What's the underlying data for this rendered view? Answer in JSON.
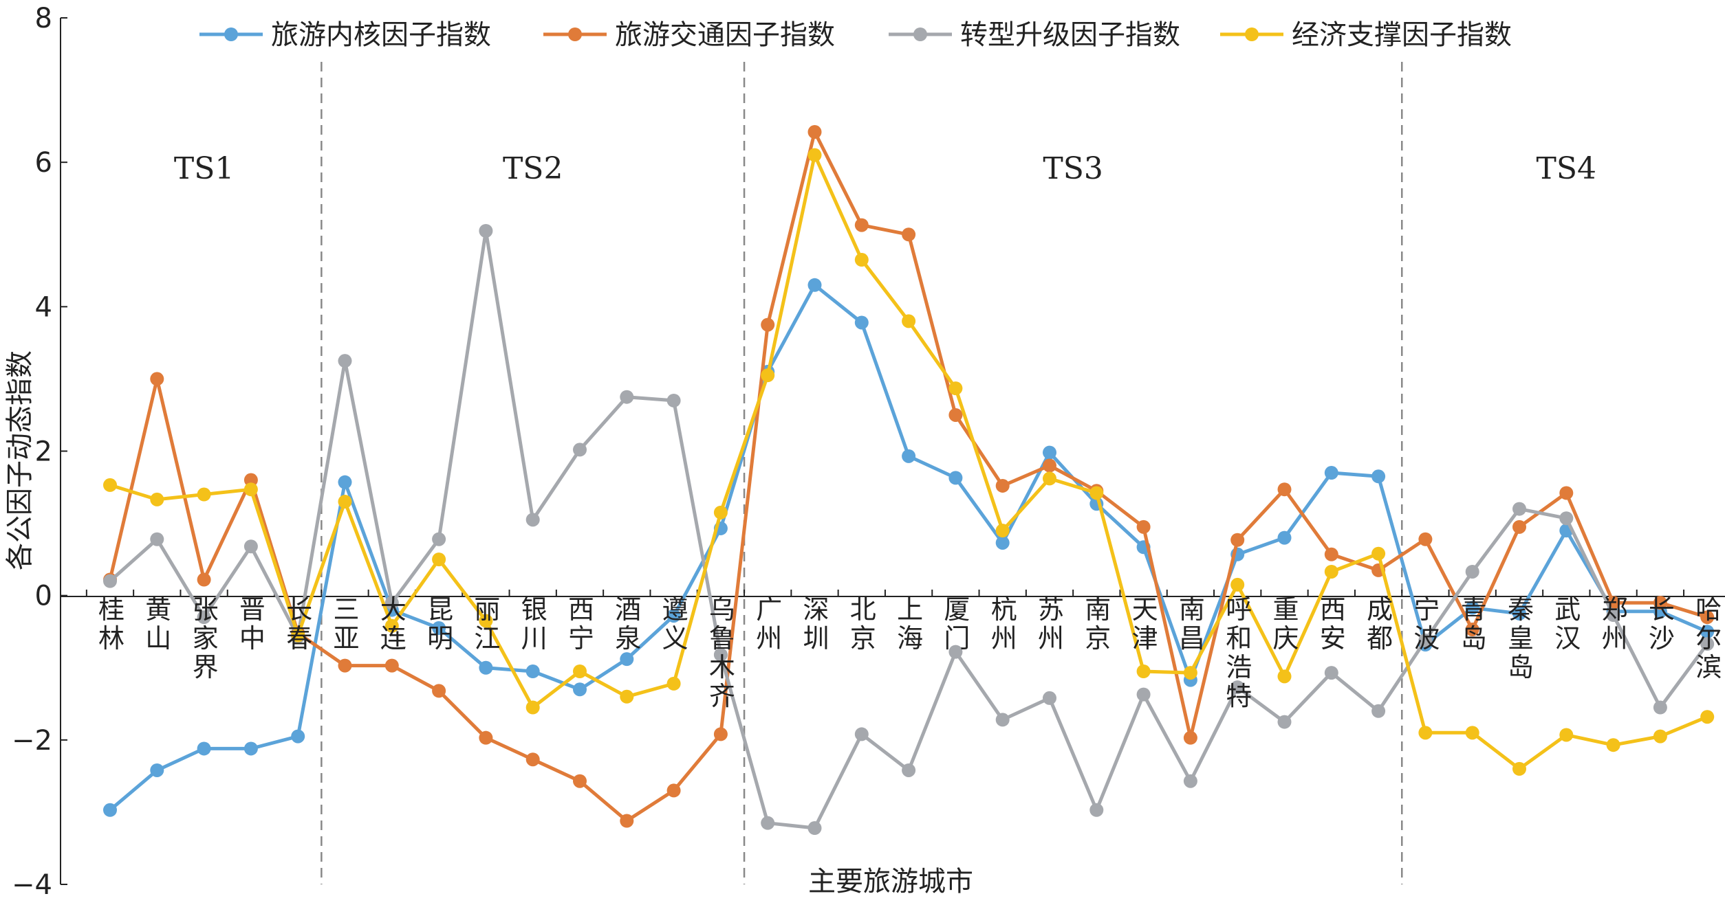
{
  "chart_data": {
    "type": "line",
    "title": "",
    "xlabel": "主要旅游城市",
    "ylabel": "各公因子动态指数",
    "ylim": [
      -4,
      8
    ],
    "yticks": [
      -4,
      -2,
      0,
      2,
      4,
      6,
      8
    ],
    "ytick_labels": [
      "−4",
      "−2",
      "0",
      "2",
      "4",
      "6",
      "8"
    ],
    "legend_position": "top",
    "grid": false,
    "categories": [
      "桂林",
      "黄山",
      "张家界",
      "晋中",
      "长春",
      "三亚",
      "大连",
      "昆明",
      "丽江",
      "银川",
      "西宁",
      "酒泉",
      "遵义",
      "乌鲁木齐",
      "广州",
      "深圳",
      "北京",
      "上海",
      "厦门",
      "杭州",
      "苏州",
      "南京",
      "天津",
      "南昌",
      "呼和浩特",
      "重庆",
      "西安",
      "成都",
      "宁波",
      "青岛",
      "秦皇岛",
      "武汉",
      "郑州",
      "长沙",
      "哈尔滨"
    ],
    "regions": [
      {
        "label": "TS1",
        "start_index": 0,
        "end_index": 4
      },
      {
        "label": "TS2",
        "start_index": 5,
        "end_index": 13
      },
      {
        "label": "TS3",
        "start_index": 14,
        "end_index": 27
      },
      {
        "label": "TS4",
        "start_index": 28,
        "end_index": 34
      }
    ],
    "series": [
      {
        "name": "旅游内核因子指数",
        "color": "#5ba3d9",
        "values": [
          -2.97,
          -2.42,
          -2.12,
          -2.12,
          -1.95,
          1.57,
          -0.2,
          -0.45,
          -1.0,
          -1.05,
          -1.3,
          -0.88,
          -0.28,
          0.93,
          3.1,
          4.3,
          3.78,
          1.93,
          1.63,
          0.73,
          1.98,
          1.27,
          0.67,
          -1.17,
          0.57,
          0.8,
          1.7,
          1.65,
          -0.68,
          -0.17,
          -0.25,
          0.9,
          -0.22,
          -0.22,
          -0.5
        ]
      },
      {
        "name": "旅游交通因子指数",
        "color": "#e07b39",
        "values": [
          0.22,
          3.0,
          0.22,
          1.6,
          -0.52,
          -0.97,
          -0.97,
          -1.32,
          -1.97,
          -2.27,
          -2.57,
          -3.12,
          -2.7,
          -1.92,
          3.75,
          6.42,
          5.13,
          5.0,
          2.5,
          1.52,
          1.8,
          1.45,
          0.95,
          -1.97,
          0.77,
          1.47,
          0.57,
          0.35,
          0.78,
          -0.47,
          0.95,
          1.42,
          -0.1,
          -0.1,
          -0.3
        ]
      },
      {
        "name": "转型升级因子指数",
        "color": "#a5a8ad",
        "values": [
          0.2,
          0.78,
          -0.3,
          0.68,
          -0.57,
          3.25,
          -0.1,
          0.78,
          5.05,
          1.05,
          2.02,
          2.75,
          2.7,
          -0.82,
          -3.15,
          -3.22,
          -1.92,
          -2.42,
          -0.78,
          -1.72,
          -1.42,
          -2.97,
          -1.37,
          -2.57,
          -1.27,
          -1.75,
          -1.07,
          -1.6,
          -0.62,
          0.33,
          1.2,
          1.07,
          -0.27,
          -1.55,
          -0.67
        ]
      },
      {
        "name": "经济支撑因子指数",
        "color": "#f4c119",
        "values": [
          1.53,
          1.33,
          1.4,
          1.47,
          -0.55,
          1.3,
          -0.42,
          0.5,
          -0.35,
          -1.55,
          -1.05,
          -1.4,
          -1.22,
          1.15,
          3.05,
          6.1,
          4.65,
          3.8,
          2.87,
          0.9,
          1.62,
          1.42,
          -1.05,
          -1.07,
          0.15,
          -1.12,
          0.33,
          0.58,
          -1.9,
          -1.9,
          -2.4,
          -1.93,
          -2.07,
          -1.95,
          -1.68
        ]
      }
    ]
  }
}
